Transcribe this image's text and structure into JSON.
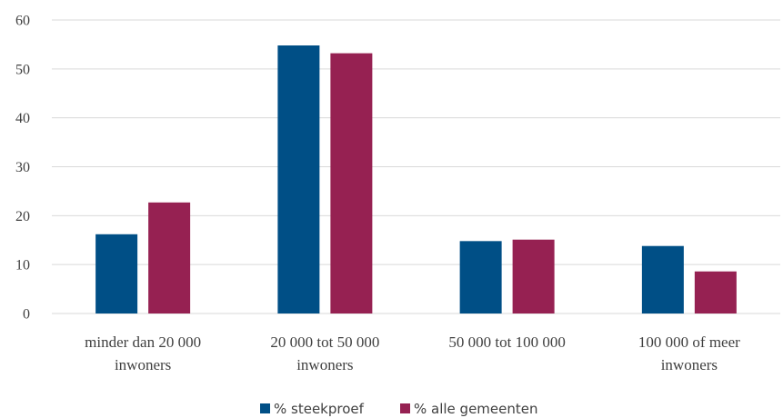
{
  "chart_data": {
    "type": "bar",
    "categories": [
      [
        "minder dan 20 000",
        "inwoners"
      ],
      [
        "20 000 tot 50 000",
        "inwoners"
      ],
      [
        "50 000 tot 100 000"
      ],
      [
        "100 000 of meer",
        "inwoners"
      ]
    ],
    "series": [
      {
        "name": "% steekproef",
        "values": [
          16.2,
          54.8,
          14.8,
          13.8
        ],
        "color": "#004f86"
      },
      {
        "name": "% alle gemeenten",
        "values": [
          22.7,
          53.2,
          15.1,
          8.6
        ],
        "color": "#962152"
      }
    ],
    "yticks": [
      "0",
      "10",
      "20",
      "30",
      "40",
      "50",
      "60"
    ],
    "ylim": [
      0,
      60
    ],
    "grid": true,
    "legend_position": "bottom"
  }
}
